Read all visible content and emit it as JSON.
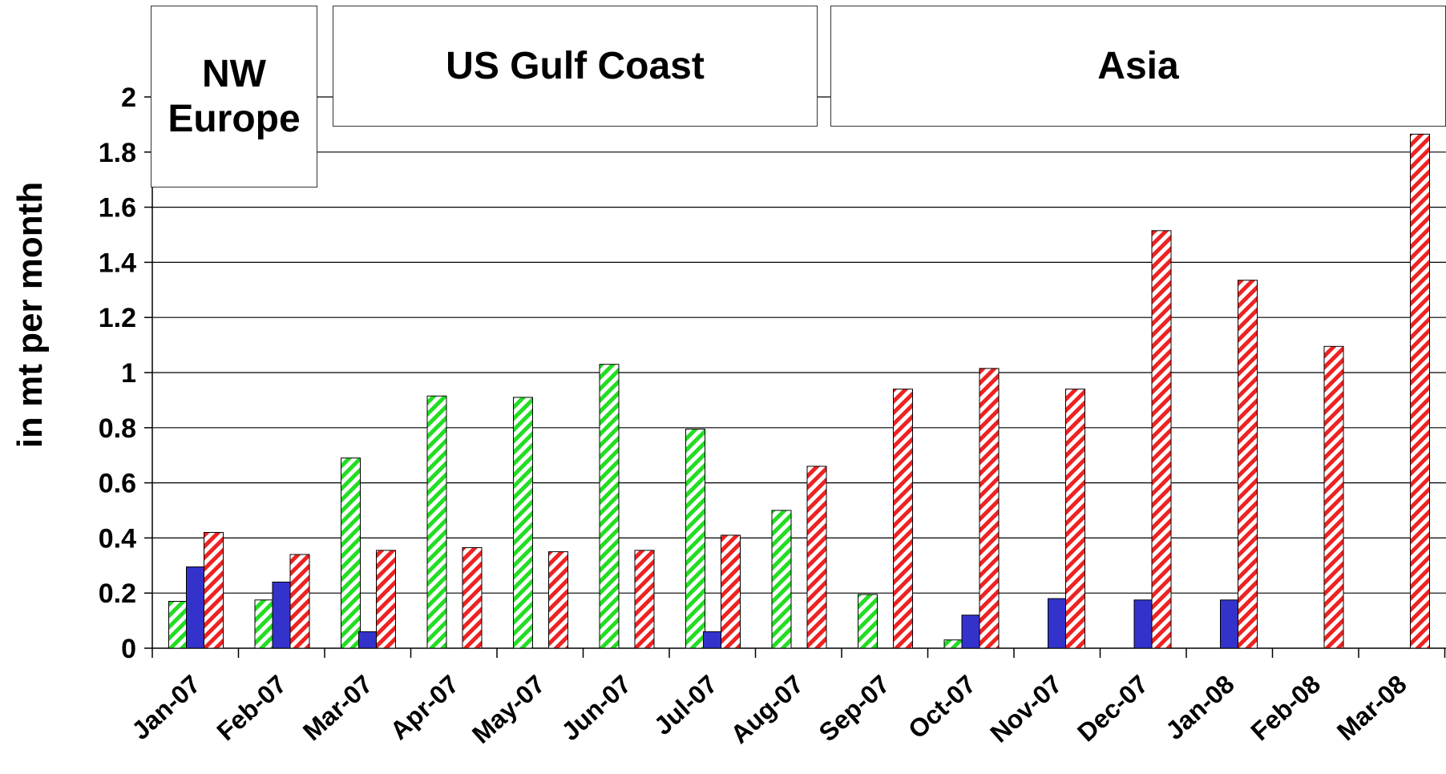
{
  "chart_data": {
    "type": "bar",
    "title": "",
    "xlabel": "",
    "ylabel": "in mt per month",
    "ylim": [
      0,
      2
    ],
    "yticks": [
      "0",
      "0.2",
      "0.4",
      "0.6",
      "0.8",
      "1",
      "1.2",
      "1.4",
      "1.6",
      "1.8",
      "2"
    ],
    "grid": true,
    "categories": [
      "Jan-07",
      "Feb-07",
      "Mar-07",
      "Apr-07",
      "May-07",
      "Jun-07",
      "Jul-07",
      "Aug-07",
      "Sep-07",
      "Oct-07",
      "Nov-07",
      "Dec-07",
      "Jan-08",
      "Feb-08",
      "Mar-08"
    ],
    "series": [
      {
        "color": "#22dd22",
        "pattern": "hatched",
        "values": [
          0.17,
          0.175,
          0.69,
          0.915,
          0.91,
          1.03,
          0.795,
          0.5,
          0.195,
          0.03,
          0,
          0,
          0,
          0,
          0
        ]
      },
      {
        "color": "#3333cc",
        "pattern": "solid",
        "values": [
          0.295,
          0.24,
          0.06,
          0,
          0,
          0,
          0.06,
          0,
          0,
          0.12,
          0.18,
          0.175,
          0.175,
          0,
          0
        ]
      },
      {
        "color": "#ee2222",
        "pattern": "hatched",
        "values": [
          0.42,
          0.34,
          0.355,
          0.365,
          0.35,
          0.355,
          0.41,
          0.66,
          0.94,
          1.015,
          0.94,
          1.515,
          1.335,
          1.095,
          1.865
        ]
      }
    ],
    "annotations": [
      "NW Europe",
      "US Gulf Coast",
      "Asia"
    ]
  }
}
